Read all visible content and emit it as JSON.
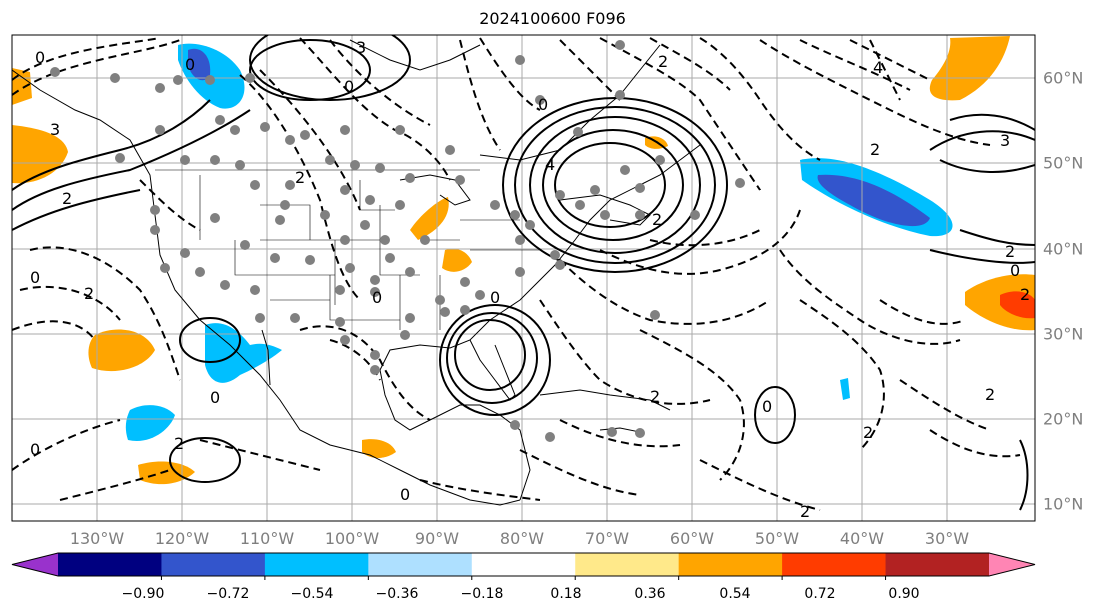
{
  "title": "2024100600 F096",
  "longitude_labels": [
    "130°W",
    "120°W",
    "110°W",
    "100°W",
    "90°W",
    "80°W",
    "70°W",
    "60°W",
    "50°W",
    "40°W",
    "30°W"
  ],
  "latitude_labels": [
    "60°N",
    "50°N",
    "40°N",
    "30°N",
    "20°N",
    "10°N"
  ],
  "colorbar": {
    "colors": [
      "#9932cc",
      "#000080",
      "#3355cc",
      "#00bfff",
      "#aee0ff",
      "#ffffff",
      "#ffe98a",
      "#ffa500",
      "#ff3c00",
      "#b22222",
      "#ff85b4"
    ],
    "tick_labels": [
      "−0.90",
      "−0.72",
      "−0.54",
      "−0.36",
      "−0.18",
      "0.18",
      "0.36",
      "0.54",
      "0.72",
      "0.90"
    ]
  },
  "contour_labels": [
    "0",
    "2",
    "3",
    "4",
    "0",
    "2",
    "3",
    "2",
    "0",
    "2",
    "0",
    "3",
    "4",
    "2",
    "2",
    "0",
    "2",
    "0",
    "2",
    "0",
    "0",
    "2",
    "0",
    "2",
    "0",
    "2",
    "0",
    "2",
    "0",
    "2"
  ]
}
